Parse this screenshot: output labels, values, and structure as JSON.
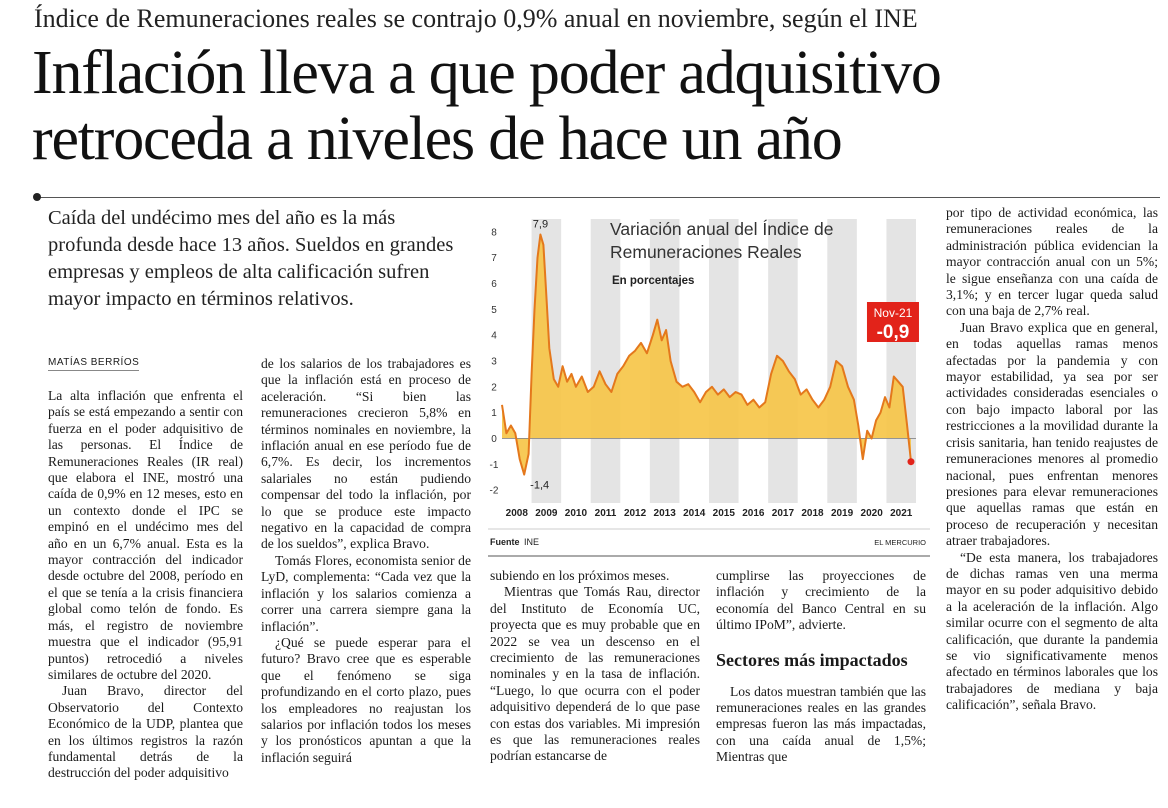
{
  "header": {
    "kicker": "Índice de Remuneraciones reales se contrajo 0,9% anual en noviembre, según el INE",
    "headline": "Inflación lleva a que poder adquisitivo retroceda a niveles de hace un año",
    "deck": "Caída del undécimo mes del año es la más profunda desde hace 13 años. Sueldos en grandes empresas y empleos de alta calificación sufren mayor impacto en términos relativos.",
    "byline": "MATÍAS BERRÍOS"
  },
  "columns": [
    [
      "La alta inflación que enfrenta el país se está empezando a sentir con fuerza en el poder adquisitivo de las personas. El Índice de Remuneraciones Reales (IR real) que elabora el INE, mostró una caída de 0,9% en 12 meses, esto en un contexto donde el IPC se empinó en el undécimo mes del año en un 6,7% anual. Esta es la mayor contracción del indicador desde octubre del 2008, período en el que se tenía a la crisis financiera global como telón de fondo. Es más, el registro de noviembre muestra que el indicador (95,91 puntos) retrocedió a niveles similares de octubre del 2020.",
      "Juan Bravo, director del Observatorio del Contexto Económico de la UDP, plantea que en los últimos registros la razón fundamental detrás de la destrucción del poder adquisitivo"
    ],
    [
      "de los salarios de los trabajadores es que la inflación está en proceso de aceleración. “Si bien las remuneraciones crecieron 5,8% en términos nominales en noviembre, la inflación anual en ese período fue de 6,7%. Es decir, los incrementos salariales no están pudiendo compensar del todo la inflación, por lo que se produce este impacto negativo en la capacidad de compra de los sueldos”, explica Bravo.",
      "Tomás Flores, economista senior de LyD, complementa: “Cada vez que la inflación y los salarios comienza a correr una carrera siempre gana la inflación”.",
      "¿Qué se puede esperar para el futuro? Bravo cree que es esperable que el fenómeno se siga profundizando en el corto plazo, pues los empleadores no reajustan los salarios por inflación todos los meses y los pronósticos apuntan a que la inflación seguirá"
    ],
    [
      "subiendo en los próximos meses.",
      "Mientras que Tomás Rau, director del Instituto de Economía UC, proyecta que es muy probable que en 2022 se vea un descenso en el crecimiento de las remuneraciones nominales y en la tasa de inflación. “Luego, lo que ocurra con el poder adquisitivo dependerá de lo que pase con estas dos variables. Mi impresión es que las remuneraciones reales podrían estancarse de"
    ],
    [
      "cumplirse las proyecciones de inflación y crecimiento de la economía del Banco Central en su último IPoM”, advierte.",
      "Los datos muestran también que las remuneraciones reales en las grandes empresas fueron las más impactadas, con una caída anual de 1,5%; Mientras que"
    ],
    [
      "por tipo de actividad económica, las remuneraciones reales de la administración pública evidencian la mayor contracción anual con un 5%; le sigue enseñanza con una caída de 3,1%; y en tercer lugar queda salud con una baja de 2,7% real.",
      "Juan Bravo explica que en general, en todas aquellas ramas menos afectadas por la pandemia y con mayor estabilidad, ya sea por ser actividades consideradas esenciales o con bajo impacto laboral por las restricciones a la movilidad durante la crisis sanitaria, han tenido reajustes de remuneraciones menores al promedio nacional, pues enfrentan menores presiones para elevar remuneraciones que aquellas ramas que están en proceso de recuperación y necesitan atraer trabajadores.",
      "“De esta manera, los trabajadores de dichas ramas ven una merma mayor en su poder adquisitivo debido a la aceleración de la inflación. Algo similar ocurre con el segmento de alta calificación, que durante la pandemia se vio significativamente menos afectado en términos laborales que los trabajadores de mediana y baja calificación”, señala Bravo."
    ]
  ],
  "subheading": "Sectores más impactados",
  "chart_data": {
    "type": "area",
    "title": "Variación anual del Índice de Remuneraciones Reales",
    "subtitle": "En porcentajes",
    "source_label": "Fuente",
    "source": "INE",
    "credit": "EL MERCURIO",
    "series": [
      {
        "name": "Índice de Remuneraciones Reales",
        "color": "#e4781c",
        "fill": "#f6c445",
        "x": [
          2008.0,
          2008.15,
          2008.3,
          2008.45,
          2008.6,
          2008.75,
          2008.9,
          2009.0,
          2009.1,
          2009.2,
          2009.3,
          2009.4,
          2009.5,
          2009.6,
          2009.75,
          2009.9,
          2010.05,
          2010.2,
          2010.35,
          2010.5,
          2010.7,
          2010.9,
          2011.1,
          2011.3,
          2011.5,
          2011.7,
          2011.9,
          2012.1,
          2012.3,
          2012.5,
          2012.7,
          2012.9,
          2013.1,
          2013.25,
          2013.4,
          2013.55,
          2013.7,
          2013.9,
          2014.1,
          2014.3,
          2014.5,
          2014.7,
          2014.9,
          2015.1,
          2015.3,
          2015.5,
          2015.7,
          2015.9,
          2016.1,
          2016.3,
          2016.5,
          2016.7,
          2016.9,
          2017.1,
          2017.3,
          2017.5,
          2017.7,
          2017.9,
          2018.1,
          2018.3,
          2018.5,
          2018.7,
          2018.9,
          2019.1,
          2019.3,
          2019.5,
          2019.7,
          2019.9,
          2020.05,
          2020.2,
          2020.35,
          2020.5,
          2020.65,
          2020.8,
          2020.95,
          2021.1,
          2021.25,
          2021.4,
          2021.55,
          2021.7,
          2021.83
        ],
        "values": [
          1.3,
          0.2,
          0.5,
          0.2,
          -0.8,
          -1.4,
          -0.6,
          2.5,
          5.0,
          7.0,
          7.9,
          7.5,
          5.5,
          3.5,
          2.3,
          2.0,
          2.8,
          2.2,
          2.5,
          2.0,
          2.4,
          1.8,
          2.0,
          2.6,
          2.1,
          1.8,
          2.5,
          2.8,
          3.2,
          3.4,
          3.7,
          3.3,
          4.0,
          4.6,
          3.8,
          4.2,
          3.0,
          2.2,
          2.0,
          2.1,
          1.8,
          1.4,
          1.8,
          2.0,
          1.7,
          1.9,
          1.6,
          1.8,
          1.7,
          1.3,
          1.5,
          1.2,
          1.4,
          2.5,
          3.2,
          3.0,
          2.6,
          2.3,
          1.7,
          1.9,
          1.5,
          1.2,
          1.5,
          2.0,
          3.0,
          2.8,
          2.0,
          1.5,
          0.5,
          -0.8,
          0.3,
          0.0,
          0.7,
          1.0,
          1.6,
          1.2,
          2.4,
          2.2,
          2.0,
          0.5,
          -0.9
        ]
      }
    ],
    "annotations": [
      {
        "text": "7,9",
        "x": 2009.3,
        "y": 7.9
      },
      {
        "text": "-1,4",
        "x": 2008.75,
        "y": -1.4
      }
    ],
    "callout": {
      "label": "Nov-21",
      "text": "-0,9",
      "x": 2021.83,
      "y": -0.9,
      "color": "#e2231a"
    },
    "xlim": [
      2008,
      2022
    ],
    "xticks": [
      {
        "value": 2008.5,
        "label": "2008"
      },
      {
        "value": 2009.5,
        "label": "2009"
      },
      {
        "value": 2010.5,
        "label": "2010"
      },
      {
        "value": 2011.5,
        "label": "2011"
      },
      {
        "value": 2012.5,
        "label": "2012"
      },
      {
        "value": 2013.5,
        "label": "2013"
      },
      {
        "value": 2014.5,
        "label": "2014"
      },
      {
        "value": 2015.5,
        "label": "2015"
      },
      {
        "value": 2016.5,
        "label": "2016"
      },
      {
        "value": 2017.5,
        "label": "2017"
      },
      {
        "value": 2018.5,
        "label": "2018"
      },
      {
        "value": 2019.5,
        "label": "2019"
      },
      {
        "value": 2020.5,
        "label": "2020"
      },
      {
        "value": 2021.5,
        "label": "2021"
      }
    ],
    "ylim": [
      -2.5,
      8.5
    ],
    "yticks": [
      -2,
      -1,
      0,
      1,
      2,
      3,
      4,
      5,
      6,
      7,
      8
    ],
    "grid": false
  }
}
